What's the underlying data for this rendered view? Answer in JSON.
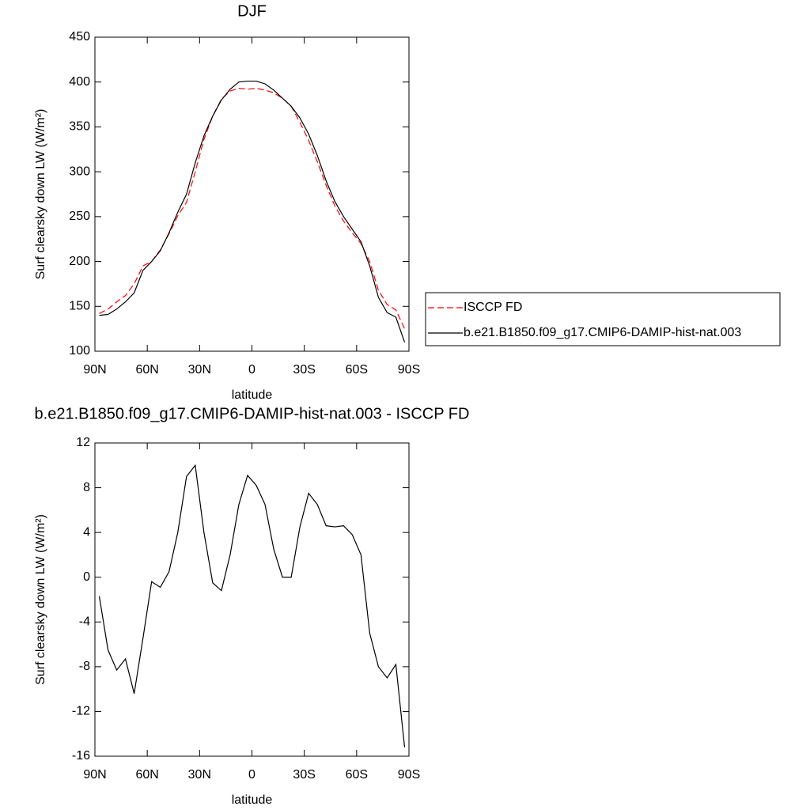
{
  "chart_data": [
    {
      "type": "line",
      "title": "DJF",
      "x_label": "latitude",
      "y_label": "Surf clearsky down LW (W/m²)",
      "x": [
        87.5,
        82.5,
        77.5,
        72.5,
        67.5,
        62.5,
        57.5,
        52.5,
        47.5,
        42.5,
        37.5,
        32.5,
        27.5,
        22.5,
        17.5,
        12.5,
        7.5,
        2.5,
        -2.5,
        -7.5,
        -12.5,
        -17.5,
        -22.5,
        -27.5,
        -32.5,
        -37.5,
        -42.5,
        -47.5,
        -52.5,
        -57.5,
        -62.5,
        -67.5,
        -72.5,
        -77.5,
        -82.5,
        -87.5
      ],
      "series": [
        {
          "name": "ISCCP FD",
          "color": "#ff0000",
          "line_style": "dashed",
          "values": [
            142,
            147,
            155,
            162,
            175,
            195,
            200,
            213,
            231,
            251,
            266,
            300,
            336,
            362,
            381,
            390,
            393,
            392,
            393,
            391,
            388,
            382,
            373,
            355,
            335,
            311,
            285,
            262,
            245,
            232,
            220,
            200,
            168,
            152,
            146,
            125
          ]
        },
        {
          "name": "b.e21.B1850.f09_g17.CMIP6-DAMIP-hist-nat.003",
          "color": "#000000",
          "line_style": "solid",
          "values": [
            140,
            141,
            147,
            155,
            165,
            190,
            200,
            212,
            232,
            255,
            275,
            310,
            340,
            362,
            380,
            392,
            400,
            401,
            401,
            398,
            391,
            382,
            373,
            360,
            342,
            318,
            290,
            267,
            250,
            236,
            222,
            195,
            160,
            143,
            138,
            110
          ]
        }
      ],
      "xlim": [
        90,
        -90
      ],
      "xticks": [
        {
          "value": 90,
          "label": "90N"
        },
        {
          "value": 60,
          "label": "60N"
        },
        {
          "value": 30,
          "label": "30N"
        },
        0,
        {
          "value": -30,
          "label": "30S"
        },
        {
          "value": -60,
          "label": "60S"
        },
        {
          "value": -90,
          "label": "90S"
        }
      ],
      "ylim": [
        100,
        450
      ],
      "yticks": [
        100,
        150,
        200,
        250,
        300,
        350,
        400,
        450
      ],
      "legend": "right"
    },
    {
      "type": "line",
      "title": "b.e21.B1850.f09_g17.CMIP6-DAMIP-hist-nat.003 - ISCCP FD",
      "x_label": "latitude",
      "y_label": "Surf clearsky down LW (W/m²)",
      "x": [
        87.5,
        82.5,
        77.5,
        72.5,
        67.5,
        62.5,
        57.5,
        52.5,
        47.5,
        42.5,
        37.5,
        32.5,
        27.5,
        22.5,
        17.5,
        12.5,
        7.5,
        2.5,
        -2.5,
        -7.5,
        -12.5,
        -17.5,
        -22.5,
        -27.5,
        -32.5,
        -37.5,
        -42.5,
        -47.5,
        -52.5,
        -57.5,
        -62.5,
        -67.5,
        -72.5,
        -77.5,
        -82.5,
        -87.5
      ],
      "series": [
        {
          "color": "#000000",
          "line_style": "solid",
          "values": [
            -1.7,
            -6.5,
            -8.3,
            -7.3,
            -10.4,
            -5.5,
            -0.4,
            -0.9,
            0.5,
            4,
            9,
            10,
            4,
            -0.5,
            -1.2,
            2,
            6.5,
            9.1,
            8.2,
            6.5,
            2.5,
            0,
            0,
            4.5,
            7.5,
            6.5,
            4.6,
            4.5,
            4.6,
            3.8,
            2,
            -5,
            -8,
            -9,
            -7.8,
            -15.2
          ]
        }
      ],
      "xlim": [
        90,
        -90
      ],
      "xticks": [
        {
          "value": 90,
          "label": "90N"
        },
        {
          "value": 60,
          "label": "60N"
        },
        {
          "value": 30,
          "label": "30N"
        },
        0,
        {
          "value": -30,
          "label": "30S"
        },
        {
          "value": -60,
          "label": "60S"
        },
        {
          "value": -90,
          "label": "90S"
        }
      ],
      "ylim": [
        -16,
        12
      ],
      "yticks": [
        -16,
        -12,
        -8,
        -4,
        0,
        4,
        8,
        12
      ]
    }
  ]
}
